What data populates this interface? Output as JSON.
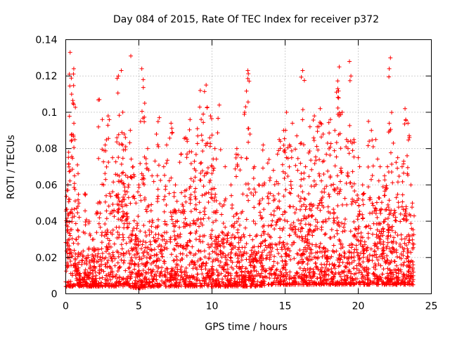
{
  "chart_data": {
    "type": "scatter",
    "title": "Day 084 of 2015, Rate Of TEC Index for receiver p372",
    "xlabel": "GPS time / hours",
    "ylabel": "ROTI / TECUs",
    "xlim": [
      0,
      25
    ],
    "ylim": [
      0,
      0.14
    ],
    "xticks": [
      0,
      5,
      10,
      15,
      20,
      25
    ],
    "xtick_labels": [
      "0",
      "5",
      "10",
      "15",
      "20",
      "25"
    ],
    "yticks": [
      0,
      0.02,
      0.04,
      0.06,
      0.08,
      0.1,
      0.12,
      0.14
    ],
    "ytick_labels": [
      "0",
      "0.02",
      "0.04",
      "0.06",
      "0.08",
      "0.1",
      "0.12",
      "0.14"
    ],
    "grid": true,
    "marker": "plus",
    "color": "#ff0000",
    "series": [
      {
        "name": "ROTI",
        "points": [
          [
            0.3,
            0.133
          ],
          [
            0.55,
            0.124
          ],
          [
            0.4,
            0.11
          ],
          [
            0.5,
            0.105
          ],
          [
            0.2,
            0.078
          ],
          [
            0.6,
            0.065
          ],
          [
            0.15,
            0.06
          ],
          [
            0.8,
            0.071
          ],
          [
            0.1,
            0.035
          ],
          [
            0.35,
            0.045
          ],
          [
            0.7,
            0.03
          ],
          [
            0.9,
            0.05
          ],
          [
            1.3,
            0.055
          ],
          [
            1.6,
            0.04
          ],
          [
            1.9,
            0.03
          ],
          [
            2.2,
            0.05
          ],
          [
            2.3,
            0.107
          ],
          [
            2.5,
            0.096
          ],
          [
            2.7,
            0.082
          ],
          [
            2.9,
            0.098
          ],
          [
            3.2,
            0.075
          ],
          [
            3.5,
            0.086
          ],
          [
            3.6,
            0.12
          ],
          [
            3.8,
            0.123
          ],
          [
            3.9,
            0.1
          ],
          [
            4.0,
            0.088
          ],
          [
            4.1,
            0.081
          ],
          [
            4.3,
            0.06
          ],
          [
            4.45,
            0.131
          ],
          [
            4.6,
            0.07
          ],
          [
            4.8,
            0.05
          ],
          [
            5.0,
            0.06
          ],
          [
            5.2,
            0.124
          ],
          [
            5.3,
            0.118
          ],
          [
            5.4,
            0.105
          ],
          [
            5.6,
            0.08
          ],
          [
            5.9,
            0.065
          ],
          [
            6.2,
            0.088
          ],
          [
            6.4,
            0.097
          ],
          [
            6.7,
            0.07
          ],
          [
            6.9,
            0.082
          ],
          [
            7.2,
            0.094
          ],
          [
            7.5,
            0.06
          ],
          [
            7.9,
            0.077
          ],
          [
            8.2,
            0.086
          ],
          [
            8.5,
            0.096
          ],
          [
            8.8,
            0.073
          ],
          [
            9.0,
            0.091
          ],
          [
            9.2,
            0.112
          ],
          [
            9.4,
            0.099
          ],
          [
            9.6,
            0.115
          ],
          [
            9.7,
            0.083
          ],
          [
            9.9,
            0.098
          ],
          [
            10.0,
            0.07
          ],
          [
            10.2,
            0.08
          ],
          [
            10.5,
            0.104
          ],
          [
            10.9,
            0.07
          ],
          [
            11.3,
            0.06
          ],
          [
            11.7,
            0.08
          ],
          [
            12.0,
            0.075
          ],
          [
            12.3,
            0.103
          ],
          [
            12.45,
            0.123
          ],
          [
            12.6,
            0.088
          ],
          [
            12.9,
            0.07
          ],
          [
            13.2,
            0.06
          ],
          [
            13.5,
            0.082
          ],
          [
            13.9,
            0.074
          ],
          [
            14.2,
            0.068
          ],
          [
            14.6,
            0.085
          ],
          [
            14.9,
            0.09
          ],
          [
            15.1,
            0.1
          ],
          [
            15.3,
            0.082
          ],
          [
            15.5,
            0.094
          ],
          [
            15.8,
            0.087
          ],
          [
            16.1,
            0.083
          ],
          [
            16.2,
            0.123
          ],
          [
            16.4,
            0.07
          ],
          [
            16.7,
            0.092
          ],
          [
            17.0,
            0.098
          ],
          [
            17.2,
            0.092
          ],
          [
            17.4,
            0.102
          ],
          [
            17.6,
            0.088
          ],
          [
            17.9,
            0.083
          ],
          [
            18.1,
            0.096
          ],
          [
            18.4,
            0.09
          ],
          [
            18.6,
            0.113
          ],
          [
            18.7,
            0.125
          ],
          [
            18.9,
            0.1
          ],
          [
            19.2,
            0.085
          ],
          [
            19.4,
            0.128
          ],
          [
            19.5,
            0.12
          ],
          [
            19.7,
            0.085
          ],
          [
            20.0,
            0.075
          ],
          [
            20.3,
            0.06
          ],
          [
            20.7,
            0.095
          ],
          [
            20.9,
            0.09
          ],
          [
            21.2,
            0.085
          ],
          [
            21.5,
            0.07
          ],
          [
            21.8,
            0.065
          ],
          [
            22.0,
            0.07
          ],
          [
            22.2,
            0.13
          ],
          [
            22.4,
            0.083
          ],
          [
            22.7,
            0.075
          ],
          [
            23.0,
            0.07
          ],
          [
            23.2,
            0.102
          ],
          [
            23.4,
            0.094
          ],
          [
            23.6,
            0.06
          ],
          [
            23.7,
            0.05
          ]
        ]
      }
    ],
    "density_profile": {
      "x": [
        0,
        1,
        2,
        3,
        4,
        5,
        6,
        7,
        8,
        9,
        10,
        11,
        12,
        13,
        14,
        15,
        16,
        17,
        18,
        19,
        20,
        21,
        22,
        23,
        23.8
      ],
      "y_band_low": [
        0.004,
        0.004,
        0.004,
        0.004,
        0.004,
        0.003,
        0.004,
        0.004,
        0.004,
        0.004,
        0.004,
        0.004,
        0.004,
        0.004,
        0.005,
        0.005,
        0.005,
        0.005,
        0.005,
        0.005,
        0.005,
        0.005,
        0.005,
        0.005,
        0.005
      ],
      "y_band_high": [
        0.06,
        0.03,
        0.03,
        0.06,
        0.08,
        0.04,
        0.05,
        0.06,
        0.06,
        0.07,
        0.06,
        0.05,
        0.05,
        0.035,
        0.06,
        0.07,
        0.06,
        0.07,
        0.07,
        0.06,
        0.06,
        0.06,
        0.06,
        0.06,
        0.05
      ]
    }
  }
}
